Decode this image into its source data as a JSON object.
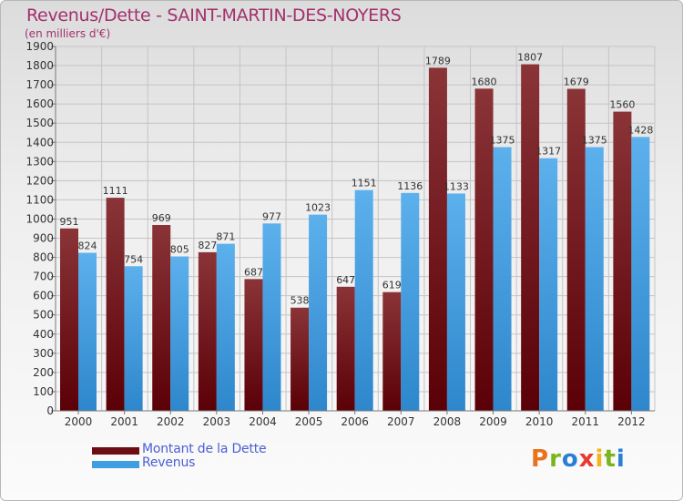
{
  "title": "Revenus/Dette - SAINT-MARTIN-DES-NOYERS",
  "subtitle": "(en milliers d'€)",
  "colors": {
    "title": "#a3306d",
    "dette": "#6b0d12",
    "revenus": "#3f9ee0",
    "legend_text": "#4a5fd3"
  },
  "chart_data": {
    "type": "bar",
    "categories": [
      "2000",
      "2001",
      "2002",
      "2003",
      "2004",
      "2005",
      "2006",
      "2007",
      "2008",
      "2009",
      "2010",
      "2011",
      "2012"
    ],
    "series": [
      {
        "name": "Montant de la Dette",
        "values": [
          951,
          1111,
          969,
          827,
          687,
          538,
          647,
          619,
          1789,
          1680,
          1807,
          1679,
          1560
        ]
      },
      {
        "name": "Revenus",
        "values": [
          824,
          754,
          805,
          871,
          977,
          1023,
          1151,
          1136,
          1133,
          1375,
          1317,
          1375,
          1428
        ]
      }
    ],
    "ylim": [
      0,
      1900
    ],
    "ytick_step": 100,
    "grid": true,
    "legend_placement": "bottom-left"
  },
  "legend": [
    {
      "label": "Montant de la Dette"
    },
    {
      "label": "Revenus"
    }
  ],
  "logo": {
    "letters": [
      "P",
      "r",
      "o",
      "x",
      "i",
      "t",
      "i"
    ],
    "colors": [
      "#e8731c",
      "#7ab51d",
      "#2a7fd4",
      "#e63b2e",
      "#f2b51b",
      "#7ab51d",
      "#2a7fd4"
    ]
  }
}
